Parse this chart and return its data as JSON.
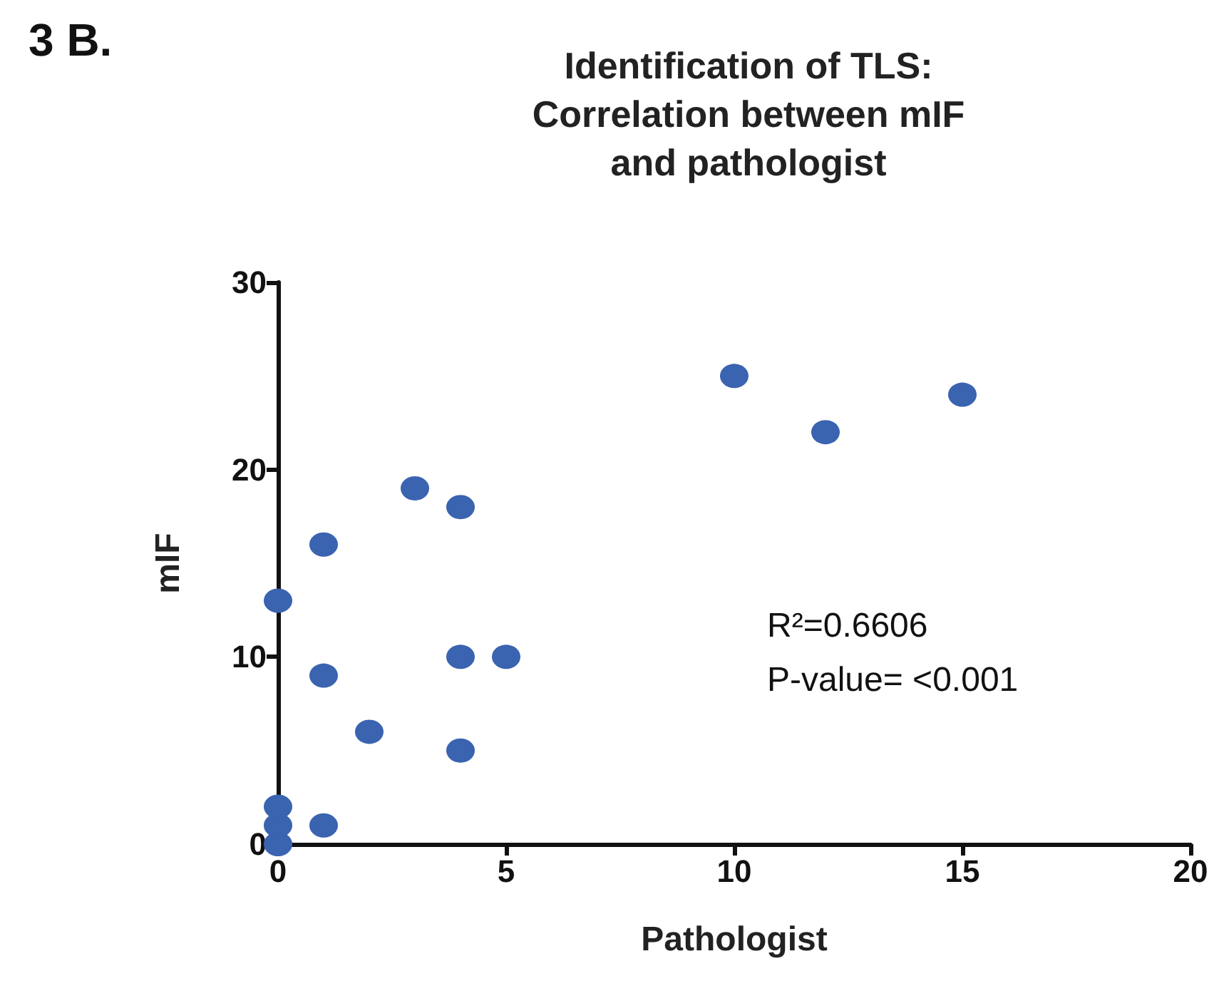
{
  "chart_data": {
    "type": "scatter",
    "title": "Identification of TLS:\nCorrelation between mIF\nand pathologist",
    "xlabel": "Pathologist",
    "ylabel": "mIF",
    "annotations": [
      "3 B.",
      "R²=0.6606\nP-value= <0.001"
    ],
    "series": [
      {
        "color": "#3a63b0",
        "x": [
          0,
          0,
          0,
          0,
          1,
          1,
          1,
          2,
          3,
          4,
          4,
          4,
          5,
          10,
          12,
          15
        ],
        "values": [
          0,
          1,
          2,
          13,
          1,
          9,
          16,
          6,
          19,
          18,
          10,
          5,
          10,
          25,
          22,
          24
        ]
      }
    ],
    "xlim": [
      0,
      20
    ],
    "xticks": [
      0,
      5,
      10,
      15,
      20
    ],
    "ylim": [
      0,
      30
    ],
    "yticks": [
      0,
      10,
      20,
      30
    ],
    "grid": false,
    "marker": "circle"
  }
}
